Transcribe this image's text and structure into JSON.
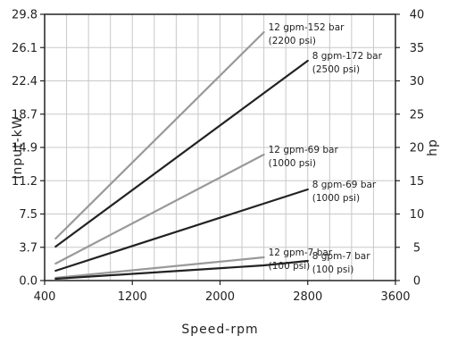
{
  "chart_data": {
    "type": "line",
    "xlabel": "Speed-rpm",
    "ylabel": "Input-kW",
    "y2label": "hp",
    "xlim": [
      400,
      3600
    ],
    "ylim": [
      0,
      29.8
    ],
    "y2lim": [
      0,
      40
    ],
    "x_ticks": [
      "400",
      "1200",
      "2000",
      "2800",
      "3600"
    ],
    "y_ticks": [
      "0.0",
      "3.7",
      "7.5",
      "11.2",
      "14.9",
      "18.7",
      "22.4",
      "26.1",
      "29.8"
    ],
    "y2_ticks": [
      "0",
      "5",
      "10",
      "15",
      "20",
      "25",
      "30",
      "35",
      "40"
    ],
    "grid": true,
    "colors": {
      "light": "#999999",
      "dark": "#222222"
    },
    "series": [
      {
        "label_line1": "12 gpm-152 bar",
        "label_line2": "(2200 psi)",
        "color": "light",
        "x": [
          500,
          2400
        ],
        "y": [
          4.7,
          27.8
        ]
      },
      {
        "label_line1": "8 gpm-172 bar",
        "label_line2": "(2500 psi)",
        "color": "dark",
        "x": [
          500,
          2800
        ],
        "y": [
          3.8,
          24.6
        ]
      },
      {
        "label_line1": "12 gpm-69 bar",
        "label_line2": "(1000 psi)",
        "color": "light",
        "x": [
          500,
          2400
        ],
        "y": [
          1.9,
          14.1
        ]
      },
      {
        "label_line1": "8 gpm-69 bar",
        "label_line2": "(1000 psi)",
        "color": "dark",
        "x": [
          500,
          2800
        ],
        "y": [
          1.1,
          10.2
        ]
      },
      {
        "label_line1": "12 gpm-7 bar",
        "label_line2": "(100 psi)",
        "color": "light",
        "x": [
          500,
          2400
        ],
        "y": [
          0.3,
          2.6
        ]
      },
      {
        "label_line1": "8 gpm-7 bar",
        "label_line2": "(100 psi)",
        "color": "dark",
        "x": [
          500,
          2400,
          2800
        ],
        "y": [
          0.2,
          1.7,
          2.2
        ]
      }
    ]
  }
}
